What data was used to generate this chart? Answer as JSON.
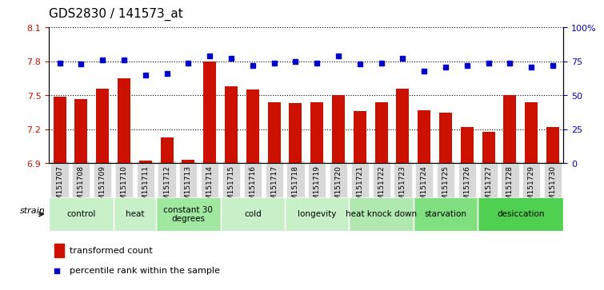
{
  "title": "GDS2830 / 141573_at",
  "samples": [
    "GSM151707",
    "GSM151708",
    "GSM151709",
    "GSM151710",
    "GSM151711",
    "GSM151712",
    "GSM151713",
    "GSM151714",
    "GSM151715",
    "GSM151716",
    "GSM151717",
    "GSM151718",
    "GSM151719",
    "GSM151720",
    "GSM151721",
    "GSM151722",
    "GSM151723",
    "GSM151724",
    "GSM151725",
    "GSM151726",
    "GSM151727",
    "GSM151728",
    "GSM151729",
    "GSM151730"
  ],
  "bar_values": [
    7.49,
    7.47,
    7.56,
    7.65,
    6.92,
    7.13,
    6.93,
    7.8,
    7.58,
    7.55,
    7.44,
    7.43,
    7.44,
    7.5,
    7.36,
    7.44,
    7.56,
    7.37,
    7.35,
    7.22,
    7.18,
    7.5,
    7.44,
    7.22
  ],
  "dot_values": [
    74,
    73,
    76,
    76,
    65,
    66,
    74,
    79,
    77,
    72,
    74,
    75,
    74,
    79,
    73,
    74,
    77,
    68,
    71,
    72,
    74,
    74,
    71,
    72
  ],
  "groups": [
    {
      "label": "control",
      "start": 0,
      "end": 3,
      "color": "#c8f0c8"
    },
    {
      "label": "heat",
      "start": 3,
      "end": 5,
      "color": "#c8f0c8"
    },
    {
      "label": "constant 30\ndegrees",
      "start": 5,
      "end": 8,
      "color": "#a0e8a0"
    },
    {
      "label": "cold",
      "start": 8,
      "end": 11,
      "color": "#c8f0c8"
    },
    {
      "label": "longevity",
      "start": 11,
      "end": 14,
      "color": "#c8f0c8"
    },
    {
      "label": "heat knock down",
      "start": 14,
      "end": 17,
      "color": "#b0e8b0"
    },
    {
      "label": "starvation",
      "start": 17,
      "end": 20,
      "color": "#80e080"
    },
    {
      "label": "desiccation",
      "start": 20,
      "end": 24,
      "color": "#50d050"
    }
  ],
  "ylim_left": [
    6.9,
    8.1
  ],
  "ylim_right": [
    0,
    100
  ],
  "bar_color": "#cc1100",
  "dot_color": "#0000cc",
  "legend_bar_label": "transformed count",
  "legend_dot_label": "percentile rank within the sample",
  "strain_label": "strain",
  "bg_color": "#ffffff",
  "tick_label_color_left": "#cc1100",
  "tick_label_color_right": "#0000cc",
  "yticks_left": [
    6.9,
    7.2,
    7.5,
    7.8,
    8.1
  ],
  "ytick_labels_left": [
    "6.9",
    "7.2",
    "7.5",
    "7.8",
    "8.1"
  ],
  "yticks_right": [
    0,
    25,
    50,
    75,
    100
  ],
  "ytick_labels_right": [
    "0",
    "25",
    "50",
    "75",
    "100%"
  ]
}
